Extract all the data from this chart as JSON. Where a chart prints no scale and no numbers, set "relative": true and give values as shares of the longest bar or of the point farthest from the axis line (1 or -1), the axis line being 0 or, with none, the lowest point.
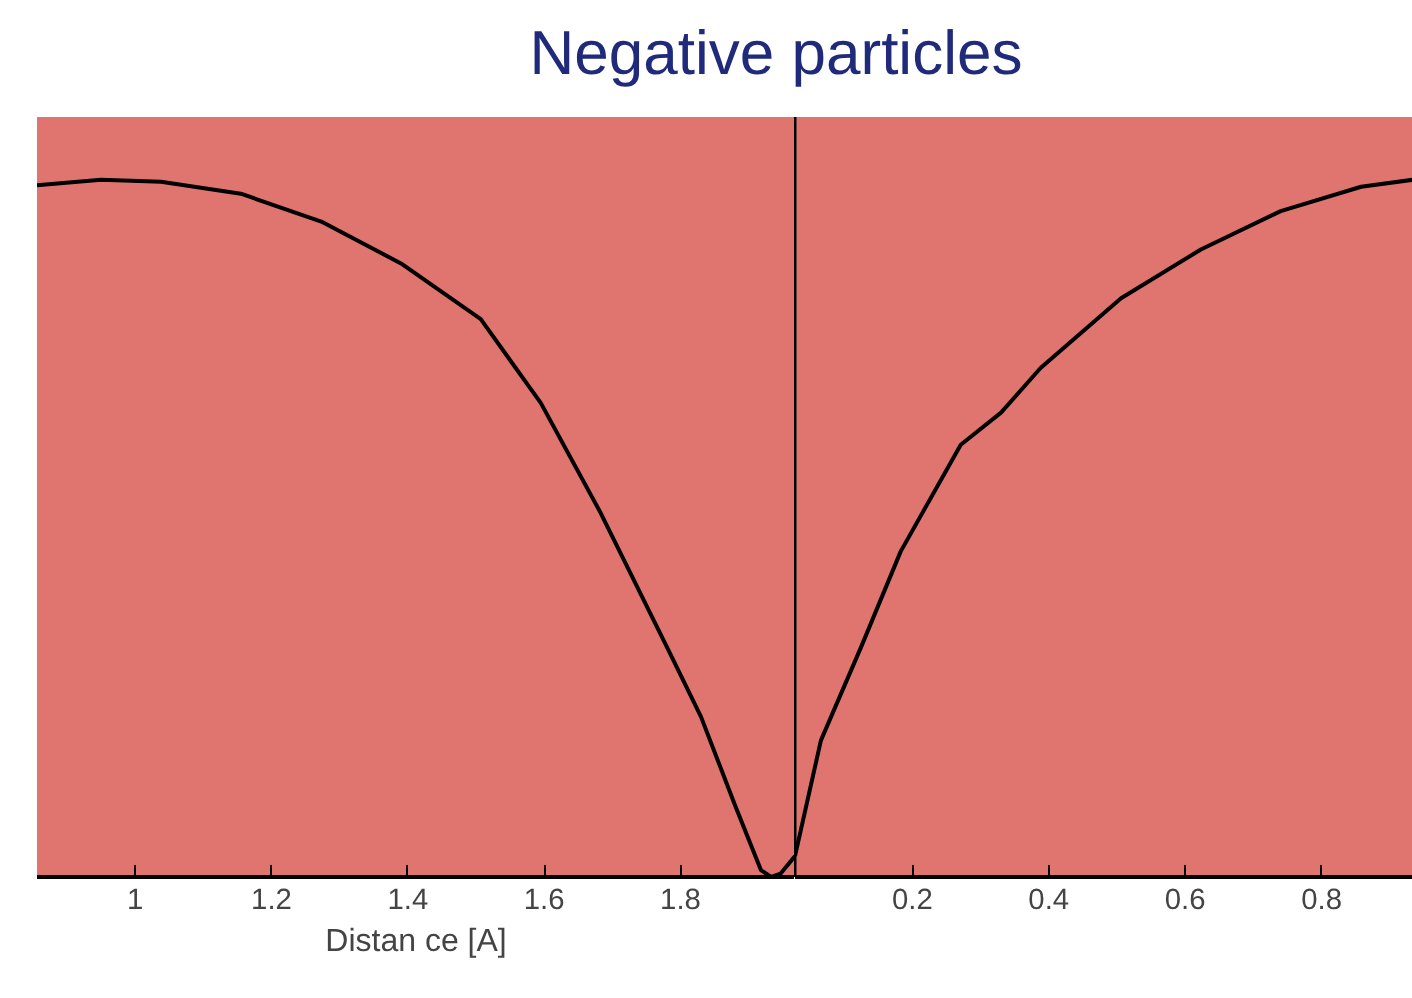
{
  "chart_data": [
    {
      "type": "line",
      "title": "Negative particles",
      "xlabel": "Distan ce [A]",
      "relative": true,
      "xlim": [
        0.856,
        1.968
      ],
      "xticks": [
        1,
        1.2,
        1.4,
        1.6,
        1.8
      ],
      "tick_labels": "x",
      "grid": false,
      "marker": "none",
      "line_style": "solid",
      "series": [
        {
          "color": "#000000",
          "x": [
            0.856,
            0.95,
            1.038,
            1.155,
            1.273,
            1.39,
            1.507,
            1.595,
            1.683,
            1.78,
            1.83,
            1.88,
            1.918,
            1.933,
            1.947,
            1.968
          ],
          "values": [
            0.992,
            1.0,
            0.997,
            0.98,
            0.94,
            0.88,
            0.8,
            0.68,
            0.522,
            0.33,
            0.23,
            0.103,
            0.01,
            0.0,
            0.005,
            0.03
          ]
        }
      ]
    },
    {
      "type": "line",
      "relative": true,
      "xlim": [
        0.028,
        0.934
      ],
      "xticks": [
        0.2,
        0.4,
        0.6,
        0.8
      ],
      "tick_labels": "x",
      "grid": false,
      "marker": "none",
      "line_style": "solid",
      "series": [
        {
          "color": "#000000",
          "x": [
            0.028,
            0.066,
            0.125,
            0.183,
            0.271,
            0.33,
            0.388,
            0.506,
            0.623,
            0.74,
            0.858,
            0.934
          ],
          "values": [
            0.03,
            0.196,
            0.33,
            0.467,
            0.62,
            0.666,
            0.73,
            0.83,
            0.9,
            0.955,
            0.99,
            1.0
          ]
        }
      ]
    }
  ]
}
